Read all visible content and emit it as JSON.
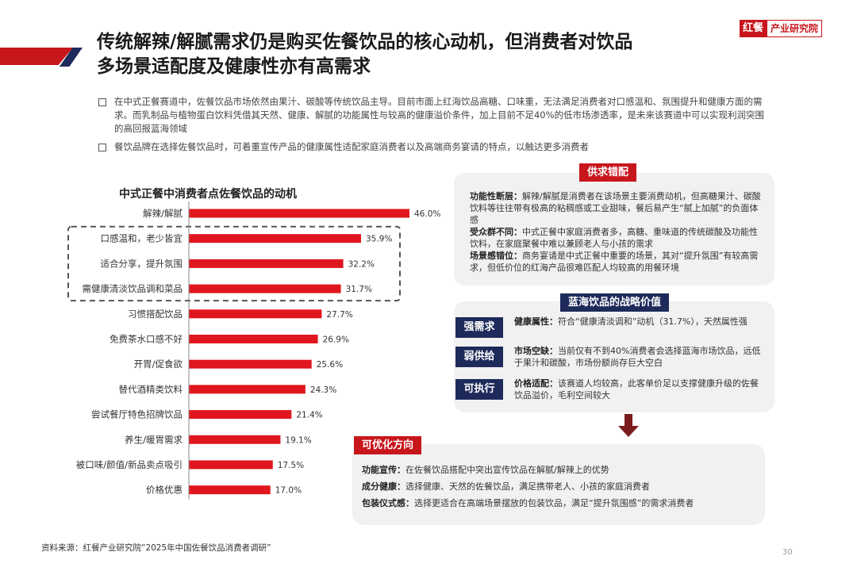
{
  "header": {
    "title_line1": "传统解辣/解腻需求仍是购买佐餐饮品的核心动机，但消费者对饮品",
    "title_line2": "多场景适配度及健康性亦有高需求",
    "logo_mark": "红餐",
    "logo_text": "产业研究院"
  },
  "bullets": [
    "在中式正餐赛道中，佐餐饮品市场依然由果汁、碳酸等传统饮品主导。目前市面上红海饮品高糖、口味重，无法满足消费者对口感温和、氛围提升和健康方面的需求。而乳制品与植物蛋白饮料凭借其天然、健康、解腻的功能属性与较高的健康溢价条件，加上目前不足40%的低市场渗透率，是未来该赛道中可以实现利润突围的高回报蓝海领域",
    "餐饮品牌在选择佐餐饮品时，可着重宣传产品的健康属性适配家庭消费者以及高端商务宴请的特点，以触达更多消费者"
  ],
  "chart_data": {
    "type": "bar",
    "orientation": "horizontal",
    "title": "中式正餐中消费者点佐餐饮品的动机",
    "categories": [
      "解辣/解腻",
      "口感温和，老少皆宜",
      "适合分享，提升氛围",
      "需健康清淡饮品调和菜品",
      "习惯搭配饮品",
      "免费茶水口感不好",
      "开胃/促食欲",
      "替代酒精类饮料",
      "尝试餐厅特色招牌饮品",
      "养生/暖胃需求",
      "被口味/颜值/新品卖点吸引",
      "价格优惠"
    ],
    "values": [
      46.0,
      35.9,
      32.2,
      31.7,
      27.7,
      26.9,
      25.6,
      24.3,
      21.4,
      19.1,
      17.5,
      17.0
    ],
    "value_labels": [
      "46.0%",
      "35.9%",
      "32.2%",
      "31.7%",
      "27.7%",
      "26.9%",
      "25.6%",
      "24.3%",
      "21.4%",
      "19.1%",
      "17.5%",
      "17.0%"
    ],
    "unit": "%",
    "xlim": [
      0,
      60
    ],
    "bar_color": "#e0161e",
    "highlighted_categories": [
      "口感温和，老少皆宜",
      "适合分享，提升氛围",
      "需健康清淡饮品调和菜品"
    ]
  },
  "supply_demand": {
    "tag": "供求错配",
    "items": [
      {
        "label": "功能性断层：",
        "text": "解辣/解腻是消费者在该场景主要消费动机，但高糖果汁、碳酸饮料等往往带有极高的粘稠感或工业甜味，餐后易产生“腻上加腻”的负面体感"
      },
      {
        "label": "受众群不同：",
        "text": "中式正餐中家庭消费者多，高糖、重味道的传统碳酸及功能性饮料，在家庭聚餐中难以兼顾老人与小孩的需求"
      },
      {
        "label": "场景感错位：",
        "text": "商务宴请是中式正餐中重要的场景，其对“提升氛围”有较高需求，但低价位的红海产品很难匹配人均较高的用餐环境"
      }
    ]
  },
  "blue_ocean": {
    "tag": "蓝海饮品的战略价值",
    "rows": [
      {
        "badge": "强需求",
        "label": "健康属性：",
        "text": "符合“健康清淡调和”动机（31.7%），天然属性强"
      },
      {
        "badge": "弱供给",
        "label": "市场空缺：",
        "text": "当前仅有不到40%消费者会选择蓝海市场饮品，远低于果汁和碳酸，市场份额尚存巨大空白"
      },
      {
        "badge": "可执行",
        "label": "价格适配：",
        "text": "该赛道人均较高，此客单价足以支撑健康升级的佐餐饮品溢价，毛利空间较大"
      }
    ]
  },
  "optimize": {
    "tag": "可优化方向",
    "items": [
      {
        "label": "功能宣传：",
        "text": "在佐餐饮品搭配中突出宣传饮品在解腻/解辣上的优势"
      },
      {
        "label": "成分健康：",
        "text": "选择健康、天然的佐餐饮品，满足携带老人、小孩的家庭消费者"
      },
      {
        "label": "包装仪式感：",
        "text": "选择更适合在高端场景摆放的包装饮品，满足“提升氛围感”的需求消费者"
      }
    ]
  },
  "footer": {
    "source": "资料来源：红餐产业研究院“2025年中国佐餐饮品消费者调研”",
    "page": "30"
  },
  "colors": {
    "brand_red": "#c8161d",
    "navy": "#1e2a5a",
    "dark_red_arrow": "#7b1c1c"
  }
}
